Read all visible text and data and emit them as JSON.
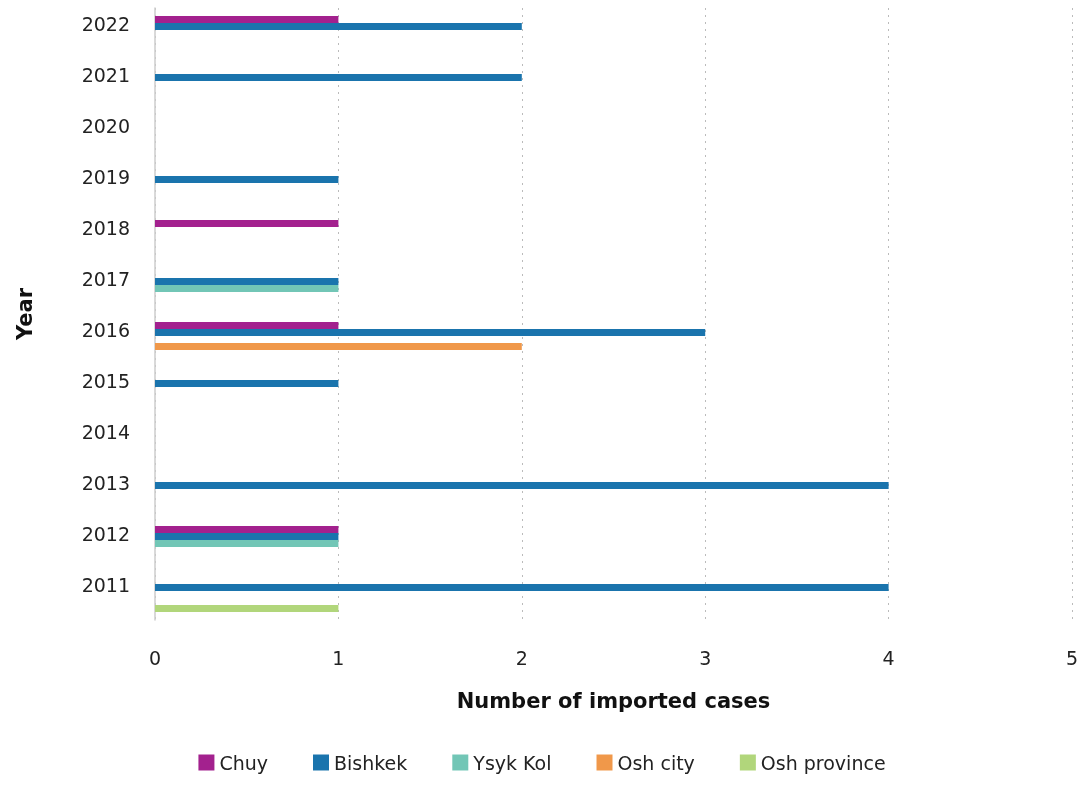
{
  "chart_data": {
    "type": "bar",
    "orientation": "horizontal",
    "xlabel": "Number of imported cases",
    "ylabel": "Year",
    "categories": [
      "2022",
      "2021",
      "2020",
      "2019",
      "2018",
      "2017",
      "2016",
      "2015",
      "2014",
      "2013",
      "2012",
      "2011"
    ],
    "series": [
      {
        "name": "Chuy",
        "color": "#a3218e",
        "values": [
          1,
          null,
          null,
          null,
          1,
          null,
          1,
          null,
          null,
          null,
          1,
          null
        ]
      },
      {
        "name": "Bishkek",
        "color": "#1a74ad",
        "values": [
          2,
          2,
          null,
          1,
          null,
          1,
          3,
          1,
          null,
          4,
          1,
          4
        ]
      },
      {
        "name": "Ysyk Kol",
        "color": "#72c6b6",
        "values": [
          null,
          null,
          null,
          null,
          null,
          1,
          null,
          null,
          null,
          null,
          1,
          null
        ]
      },
      {
        "name": "Osh city",
        "color": "#f0984a",
        "values": [
          null,
          null,
          null,
          null,
          null,
          null,
          2,
          null,
          null,
          null,
          null,
          null
        ]
      },
      {
        "name": "Osh province",
        "color": "#b1d67b",
        "values": [
          null,
          null,
          null,
          null,
          null,
          null,
          null,
          null,
          null,
          null,
          null,
          1
        ]
      }
    ],
    "xlim": [
      0,
      5
    ],
    "xticks": [
      0,
      1,
      2,
      3,
      4,
      5
    ],
    "grid": "x",
    "legend": "bottom"
  }
}
